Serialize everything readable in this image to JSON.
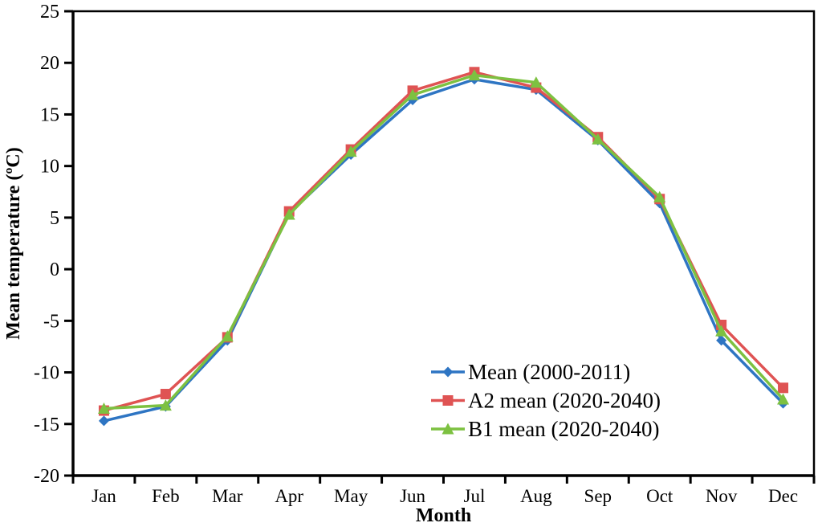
{
  "chart_data": {
    "type": "line",
    "title": "",
    "xlabel": "Month",
    "ylabel": "Mean temperature (ºC)",
    "categories": [
      "Jan",
      "Feb",
      "Mar",
      "Apr",
      "May",
      "Jun",
      "Jul",
      "Aug",
      "Sep",
      "Oct",
      "Nov",
      "Dec"
    ],
    "ylim": [
      -20,
      25
    ],
    "ytick_step": 5,
    "ytick_labels": [
      "-20",
      "-15",
      "-10",
      "-5",
      "0",
      "5",
      "10",
      "15",
      "20",
      "25"
    ],
    "grid": false,
    "legend_position": "inside-lower-right",
    "series": [
      {
        "name": "Mean (2000-2011)",
        "color": "#2e75c3",
        "marker": "diamond",
        "values": [
          -14.7,
          -13.3,
          -6.9,
          5.4,
          11.1,
          16.4,
          18.4,
          17.4,
          12.5,
          6.4,
          -6.9,
          -13.0
        ]
      },
      {
        "name": "A2 mean (2020-2040)",
        "color": "#df5353",
        "marker": "square",
        "values": [
          -13.7,
          -12.1,
          -6.6,
          5.6,
          11.6,
          17.3,
          19.1,
          17.6,
          12.8,
          6.8,
          -5.4,
          -11.5
        ]
      },
      {
        "name": "B1 mean (2020-2040)",
        "color": "#7dc141",
        "marker": "triangle",
        "values": [
          -13.5,
          -13.2,
          -6.5,
          5.3,
          11.4,
          16.9,
          18.8,
          18.1,
          12.6,
          7.0,
          -6.0,
          -12.6
        ]
      }
    ]
  },
  "colors": {
    "axis": "#000000",
    "background": "#ffffff"
  }
}
